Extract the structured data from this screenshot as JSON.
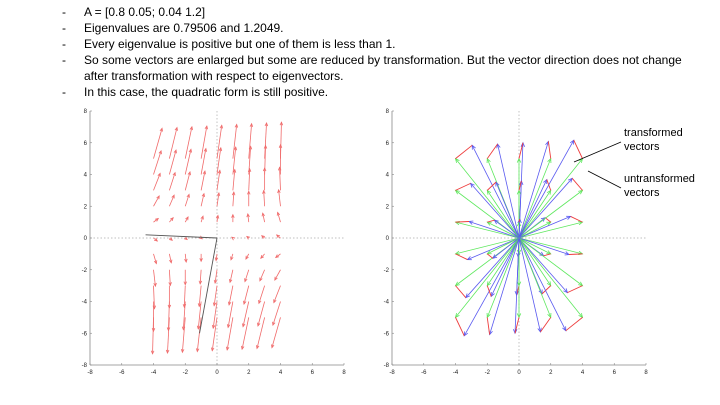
{
  "bullets": [
    "A = [0.8 0.05; 0.04 1.2]",
    "Eigenvalues are 0.79506 and 1.2049.",
    "Every eigenvalue is positive but one of them is less than 1.",
    "So some vectors are enlarged but some are reduced by transformation. But the vector direction does not change after transformation with respect to eigenvectors.",
    "In this case, the quadratic form is still positive."
  ],
  "bullet_marker": "-",
  "annotations": {
    "transformed": "transformed vectors",
    "untransformed": "untransformed vectors"
  },
  "matrix": [
    [
      0.8,
      0.05
    ],
    [
      0.04,
      1.2
    ]
  ],
  "colors": {
    "quiver": "#f06a6a",
    "transformed": "#5a5af0",
    "untransformed": "#5ee85e",
    "difference": "#ee3c3c",
    "eigvec": "#555555",
    "axis": "#888888",
    "dotted": "#aaaaaa"
  },
  "chart_data": [
    {
      "type": "quiver",
      "xlim": [
        -8,
        8
      ],
      "ylim": [
        -8,
        8
      ],
      "xticks": [
        "-8",
        "-6",
        "-4",
        "-2",
        "0",
        "2",
        "4",
        "6",
        "8"
      ],
      "yticks": [
        "-8",
        "-6",
        "-4",
        "-2",
        "0",
        "2",
        "4",
        "6",
        "8"
      ],
      "grid_x": [
        -4,
        -3,
        -2,
        -1,
        0,
        1,
        2,
        3,
        4
      ],
      "grid_y": [
        5,
        4,
        3,
        2,
        1,
        0,
        -1,
        -2,
        -3,
        -4,
        -5
      ],
      "vector_scale": 0.3,
      "eigenvector_lines": [
        {
          "from": [
            0,
            0
          ],
          "to": [
            -4.5,
            0.2
          ]
        },
        {
          "from": [
            0,
            0
          ],
          "to": [
            -1.1,
            -6.0
          ]
        }
      ]
    },
    {
      "type": "vector-transform",
      "xlim": [
        -8,
        8
      ],
      "ylim": [
        -8,
        8
      ],
      "xticks": [
        "-8",
        "-6",
        "-4",
        "-2",
        "0",
        "2",
        "4",
        "6",
        "8"
      ],
      "yticks": [
        "-8",
        "-6",
        "-4",
        "-2",
        "0",
        "2",
        "4",
        "6",
        "8"
      ],
      "grid_x": [
        -4,
        -2,
        0,
        2,
        4
      ],
      "grid_y": [
        5,
        3,
        1,
        -1,
        -3,
        -5
      ]
    }
  ]
}
